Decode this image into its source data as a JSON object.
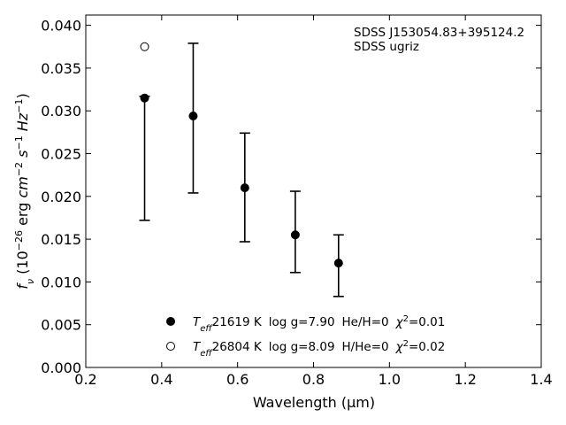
{
  "chart_data": {
    "type": "scatter",
    "xlabel": "Wavelength (μm)",
    "ylabel": "f_ν (10^-26 erg cm^-2 s^-1 Hz^-1)",
    "xlim": [
      0.2,
      1.4
    ],
    "ylim": [
      0.0,
      0.0412
    ],
    "xticks": [
      "0.2",
      "0.4",
      "0.6",
      "0.8",
      "1.0",
      "1.2",
      "1.4"
    ],
    "yticks": [
      "0.000",
      "0.005",
      "0.010",
      "0.015",
      "0.020",
      "0.025",
      "0.030",
      "0.035",
      "0.040"
    ],
    "annotations": [
      "SDSS J153054.83+395124.2",
      "SDSS ugriz"
    ],
    "legend_position": "bottom-center",
    "observed": {
      "x": [
        0.355,
        0.483,
        0.619,
        0.752,
        0.866
      ],
      "y": [
        0.0315,
        0.0294,
        0.021,
        0.0155,
        0.0122
      ],
      "yerr_low": [
        0.0172,
        0.0204,
        0.0147,
        0.0111,
        0.0083
      ],
      "yerr_high": [
        0.0317,
        0.0379,
        0.0274,
        0.0206,
        0.0155
      ]
    },
    "series": [
      {
        "marker": "filled",
        "teff": "21619 K",
        "logg": "log g=7.90",
        "comp": "He/H=0",
        "chi2": "=0.01",
        "x": [
          0.355,
          0.483,
          0.619,
          0.752,
          0.866
        ],
        "y": [
          0.0315,
          0.0294,
          0.021,
          0.0155,
          0.0122
        ]
      },
      {
        "marker": "open",
        "teff": "26804 K",
        "logg": "log g=8.09",
        "comp": "H/He=0",
        "chi2": "=0.02",
        "x": [
          0.355
        ],
        "y": [
          0.0375
        ]
      }
    ]
  }
}
